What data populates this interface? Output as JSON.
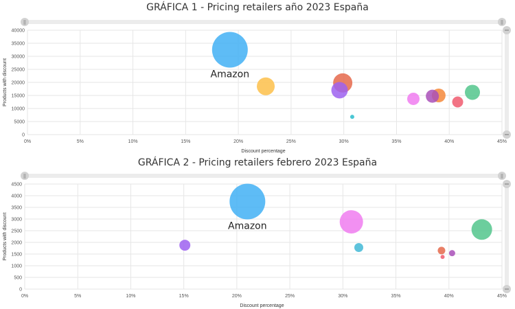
{
  "chart_data": [
    {
      "type": "scatter",
      "title": "GRÁFICA 1 - Pricing retailers año 2023 España",
      "xlabel": "Discount percentage",
      "ylabel": "Products with discount",
      "xlim": [
        0,
        45
      ],
      "ylim": [
        0,
        40000
      ],
      "xticks": [
        0,
        5,
        10,
        15,
        20,
        25,
        30,
        35,
        40,
        45
      ],
      "xtick_labels": [
        "0%",
        "5%",
        "10%",
        "15%",
        "20%",
        "25%",
        "30%",
        "35%",
        "40%",
        "45%"
      ],
      "yticks": [
        0,
        5000,
        10000,
        15000,
        20000,
        25000,
        30000,
        35000,
        40000
      ],
      "grid": true,
      "points": [
        {
          "x": 19.2,
          "y": 32500,
          "size": 26,
          "color": "#42b0f5",
          "label": "Amazon"
        },
        {
          "x": 22.6,
          "y": 18500,
          "size": 13,
          "color": "#fdbf4a",
          "label": ""
        },
        {
          "x": 29.9,
          "y": 19800,
          "size": 14,
          "color": "#e5684b",
          "label": ""
        },
        {
          "x": 29.6,
          "y": 17000,
          "size": 12,
          "color": "#9d62f0",
          "label": ""
        },
        {
          "x": 30.8,
          "y": 6800,
          "size": 3,
          "color": "#2bbdcc",
          "label": ""
        },
        {
          "x": 36.6,
          "y": 13700,
          "size": 9,
          "color": "#f07cf0",
          "label": ""
        },
        {
          "x": 39.0,
          "y": 15000,
          "size": 10,
          "color": "#f5883a",
          "label": ""
        },
        {
          "x": 38.4,
          "y": 14700,
          "size": 9.5,
          "color": "#a950b8",
          "label": ""
        },
        {
          "x": 40.8,
          "y": 12500,
          "size": 8,
          "color": "#f05a6e",
          "label": ""
        },
        {
          "x": 42.2,
          "y": 16200,
          "size": 11,
          "color": "#52c58c",
          "label": ""
        }
      ]
    },
    {
      "type": "scatter",
      "title": "GRÁFICA 2 - Pricing retailers febrero 2023 España",
      "xlabel": "Discount percentage",
      "ylabel": "Products with discount",
      "xlim": [
        0,
        45
      ],
      "ylim": [
        0,
        4500
      ],
      "xticks": [
        0,
        5,
        10,
        15,
        20,
        25,
        30,
        35,
        40,
        45
      ],
      "xtick_labels": [
        "0%",
        "5%",
        "10%",
        "15%",
        "20%",
        "25%",
        "30%",
        "35%",
        "40%",
        "45%"
      ],
      "yticks": [
        0,
        500,
        1000,
        1500,
        2000,
        2500,
        3000,
        3500,
        4000,
        4500
      ],
      "grid": true,
      "points": [
        {
          "x": 21.0,
          "y": 3750,
          "size": 26,
          "color": "#42b0f5",
          "label": "Amazon"
        },
        {
          "x": 15.1,
          "y": 1880,
          "size": 8,
          "color": "#9d62f0",
          "label": ""
        },
        {
          "x": 30.8,
          "y": 2880,
          "size": 17,
          "color": "#f07cf0",
          "label": ""
        },
        {
          "x": 31.5,
          "y": 1780,
          "size": 6.5,
          "color": "#42b8d6",
          "label": ""
        },
        {
          "x": 39.3,
          "y": 1650,
          "size": 5.5,
          "color": "#e5684b",
          "label": ""
        },
        {
          "x": 39.4,
          "y": 1380,
          "size": 3,
          "color": "#f05a6e",
          "label": ""
        },
        {
          "x": 40.3,
          "y": 1540,
          "size": 4.5,
          "color": "#a950b8",
          "label": ""
        },
        {
          "x": 43.1,
          "y": 2550,
          "size": 15,
          "color": "#52c58c",
          "label": ""
        }
      ]
    }
  ],
  "colors": {
    "grid": "#e6e6e6",
    "scrollbar_track": "#ececec",
    "scrollbar_handle": "#d2d2d2"
  },
  "icons": [
    "scroll-handle-icon",
    "zoom-handle-icon"
  ]
}
